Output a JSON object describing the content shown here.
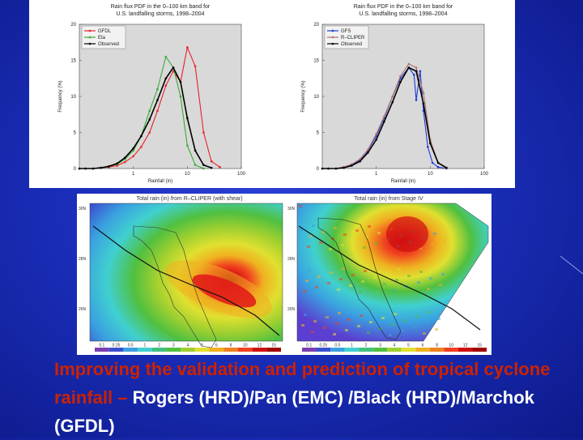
{
  "pdf_charts": [
    {
      "title_line1": "Rain flux PDF in the 0–100 km band for",
      "title_line2": "U.S. landfalling storms, 1998–2004",
      "ylabel": "Frequency (%)",
      "xlabel": "Rainfall (in)",
      "yticks": [
        "0",
        "5",
        "10",
        "15",
        "20"
      ],
      "xticks": [
        "1",
        "10",
        "100"
      ],
      "legend": [
        {
          "label": "GFDL",
          "color": "#e8202a"
        },
        {
          "label": "Eta",
          "color": "#3aaa35"
        },
        {
          "label": "Observed",
          "color": "#000000"
        }
      ],
      "chart_data": {
        "type": "line",
        "ylim": [
          0,
          20
        ],
        "xscale": "log",
        "series": [
          {
            "name": "GFDL",
            "color": "#e8202a",
            "x": [
              0.1,
              0.13,
              0.18,
              0.25,
              0.35,
              0.5,
              0.7,
              1.0,
              1.4,
              2.0,
              2.8,
              4.0,
              5.5,
              7.5,
              10,
              14,
              20,
              28,
              40
            ],
            "y": [
              0,
              0,
              0,
              0.1,
              0.2,
              0.4,
              0.9,
              1.7,
              3.0,
              5.0,
              8.0,
              11.5,
              13.5,
              12.0,
              16.8,
              14.2,
              5.0,
              1.0,
              0.2
            ]
          },
          {
            "name": "Eta",
            "color": "#3aaa35",
            "x": [
              0.1,
              0.13,
              0.18,
              0.25,
              0.35,
              0.5,
              0.7,
              1.0,
              1.4,
              2.0,
              2.8,
              4.0,
              5.5,
              7.5,
              10,
              14,
              20
            ],
            "y": [
              0,
              0,
              0,
              0.1,
              0.3,
              0.6,
              1.3,
              2.5,
              4.5,
              8.0,
              11.0,
              15.5,
              14.0,
              10.0,
              3.2,
              0.5,
              0
            ]
          },
          {
            "name": "Observed",
            "color": "#000000",
            "x": [
              0.1,
              0.13,
              0.18,
              0.25,
              0.35,
              0.5,
              0.7,
              1.0,
              1.4,
              2.0,
              2.8,
              4.0,
              5.5,
              7.5,
              10,
              14,
              20,
              28
            ],
            "y": [
              0,
              0,
              0,
              0.1,
              0.3,
              0.7,
              1.5,
              2.8,
              4.5,
              6.8,
              9.5,
              12.5,
              14.0,
              12.0,
              7.0,
              2.5,
              0.5,
              0.1
            ]
          }
        ]
      }
    },
    {
      "title_line1": "Rain flux PDF in the 0–100 km band for",
      "title_line2": "U.S. landfalling storms, 1998–2004",
      "ylabel": "Frequency (%)",
      "xlabel": "Rainfall (in)",
      "yticks": [
        "0",
        "5",
        "10",
        "15",
        "20"
      ],
      "xticks": [
        "1",
        "10",
        "100"
      ],
      "legend": [
        {
          "label": "GFS",
          "color": "#1a3bd6"
        },
        {
          "label": "R–CLIPER",
          "color": "#b07070"
        },
        {
          "label": "Observed",
          "color": "#000000"
        }
      ],
      "chart_data": {
        "type": "line",
        "ylim": [
          0,
          20
        ],
        "xscale": "log",
        "series": [
          {
            "name": "GFS",
            "color": "#1a3bd6",
            "x": [
              0.1,
              0.13,
              0.18,
              0.25,
              0.35,
              0.5,
              0.7,
              1.0,
              1.4,
              2.0,
              2.8,
              4.0,
              5.0,
              5.5,
              6.5,
              7.5,
              9,
              11,
              14,
              20
            ],
            "y": [
              0,
              0,
              0,
              0.2,
              0.5,
              1.2,
              2.5,
              4.5,
              7.0,
              10.0,
              12.5,
              14.0,
              13.0,
              9.5,
              13.5,
              8.0,
              3.0,
              0.8,
              0.2,
              0
            ]
          },
          {
            "name": "R–CLIPER",
            "color": "#b07070",
            "x": [
              0.1,
              0.13,
              0.18,
              0.25,
              0.35,
              0.5,
              0.7,
              1.0,
              1.4,
              2.0,
              2.8,
              4.0,
              5.5,
              7.5,
              10,
              14,
              20
            ],
            "y": [
              0,
              0,
              0,
              0.2,
              0.6,
              1.3,
              2.6,
              4.8,
              7.2,
              10.0,
              12.8,
              14.5,
              14.0,
              10.5,
              4.0,
              0.8,
              0
            ]
          },
          {
            "name": "Observed",
            "color": "#000000",
            "x": [
              0.1,
              0.13,
              0.18,
              0.25,
              0.35,
              0.5,
              0.7,
              1.0,
              1.4,
              2.0,
              2.8,
              4.0,
              5.5,
              7.5,
              10,
              14,
              20
            ],
            "y": [
              0,
              0,
              0,
              0.1,
              0.4,
              1.0,
              2.2,
              4.0,
              6.5,
              9.2,
              12.0,
              14.0,
              13.5,
              9.0,
              3.5,
              0.8,
              0.1
            ]
          }
        ]
      }
    }
  ],
  "maps": [
    {
      "title": "Total rain (in) from R–CLIPER (with shear)",
      "lat_labels": [
        "30N",
        "28N",
        "26N"
      ],
      "colorbar_labels": [
        "0.1",
        "0.25",
        "0.5",
        "1",
        "2",
        "3",
        "4",
        "5",
        "6",
        "8",
        "10",
        "12",
        "15"
      ],
      "colorbar_colors": [
        "#7a3fb0",
        "#3a4fd0",
        "#3aa0e0",
        "#40d0d0",
        "#40c080",
        "#50c040",
        "#a0d030",
        "#e0e030",
        "#f0b020",
        "#f08020",
        "#f04020",
        "#d01010",
        "#a00000"
      ]
    },
    {
      "title": "Total rain (in) from Stage IV",
      "lat_labels": [
        "30N",
        "28N",
        "26N"
      ],
      "colorbar_labels": [
        "0.1",
        "0.25",
        "0.5",
        "1",
        "2",
        "3",
        "4",
        "5",
        "6",
        "8",
        "10",
        "12",
        "15"
      ],
      "colorbar_colors": [
        "#7a3fb0",
        "#3a4fd0",
        "#3aa0e0",
        "#40d0d0",
        "#40c080",
        "#50c040",
        "#a0d030",
        "#e0e030",
        "#f0b020",
        "#f08020",
        "#f04020",
        "#d01010",
        "#a00000"
      ]
    }
  ],
  "caption": {
    "red_part": "Improving the validation and prediction of tropical cyclone rainfall –",
    "white_part": " Rogers (HRD)/Pan (EMC) /Black (HRD)/Marchok (GFDL)"
  }
}
